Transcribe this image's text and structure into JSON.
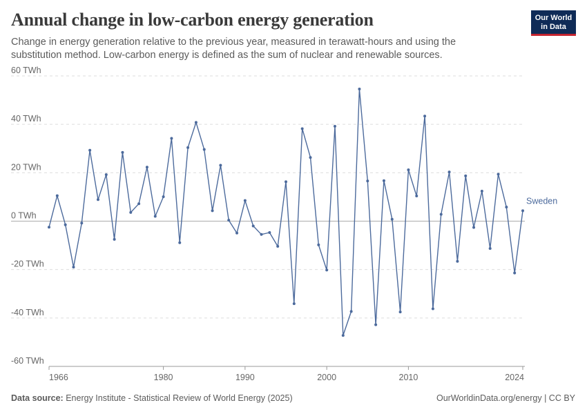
{
  "header": {
    "title": "Annual change in low-carbon energy generation",
    "subtitle": "Change in energy generation relative to the previous year, measured in terawatt-hours and using the substitution method. Low-carbon energy is defined as the sum of nuclear and renewable sources.",
    "logo_line1": "Our World",
    "logo_line2": "in Data"
  },
  "footer": {
    "source_label": "Data source:",
    "source_text": "Energy Institute - Statistical Review of World Energy (2025)",
    "credit": "OurWorldinData.org/energy | CC BY"
  },
  "colors": {
    "series": "#4c6a9c",
    "grid": "#dddddd",
    "zero": "#aaaaaa",
    "axis": "#999999"
  },
  "chart_data": {
    "type": "line",
    "title": "Annual change in low-carbon energy generation",
    "ylim": [
      -60,
      60
    ],
    "xlim": [
      1966,
      2024
    ],
    "yticks": [
      60,
      40,
      20,
      0,
      -20,
      -40,
      -60
    ],
    "ytick_labels": [
      "60 TWh",
      "40 TWh",
      "20 TWh",
      "0 TWh",
      "-20 TWh",
      "-40 TWh",
      "-60 TWh"
    ],
    "xticks": [
      1966,
      1980,
      1990,
      2000,
      2010,
      2024
    ],
    "grid": true,
    "series": [
      {
        "name": "Sweden",
        "x": [
          1966,
          1967,
          1968,
          1969,
          1970,
          1971,
          1972,
          1973,
          1974,
          1975,
          1976,
          1977,
          1978,
          1979,
          1980,
          1981,
          1982,
          1983,
          1984,
          1985,
          1986,
          1987,
          1988,
          1989,
          1990,
          1991,
          1992,
          1993,
          1994,
          1995,
          1996,
          1997,
          1998,
          1999,
          2000,
          2001,
          2002,
          2003,
          2004,
          2005,
          2006,
          2007,
          2008,
          2009,
          2010,
          2011,
          2012,
          2013,
          2014,
          2015,
          2016,
          2017,
          2018,
          2019,
          2020,
          2021,
          2022,
          2023,
          2024
        ],
        "values": [
          -2.5,
          10.5,
          -1.5,
          -19.0,
          -0.8,
          29.3,
          8.9,
          19.2,
          -7.5,
          28.4,
          3.6,
          7.2,
          22.3,
          2.0,
          10.1,
          34.2,
          -8.9,
          30.4,
          40.8,
          29.6,
          4.3,
          23.1,
          0.4,
          -4.9,
          8.5,
          -2.0,
          -5.5,
          -4.7,
          -10.4,
          16.3,
          -34.1,
          38.2,
          26.3,
          -9.8,
          -20.2,
          39.2,
          -47.2,
          -37.3,
          54.6,
          16.6,
          -42.8,
          16.7,
          0.8,
          -37.5,
          21.2,
          10.4,
          43.4,
          -36.2,
          2.8,
          20.3,
          -16.6,
          18.7,
          -2.6,
          12.4,
          -11.3,
          19.4,
          5.8,
          -21.4,
          4.3
        ]
      }
    ]
  }
}
